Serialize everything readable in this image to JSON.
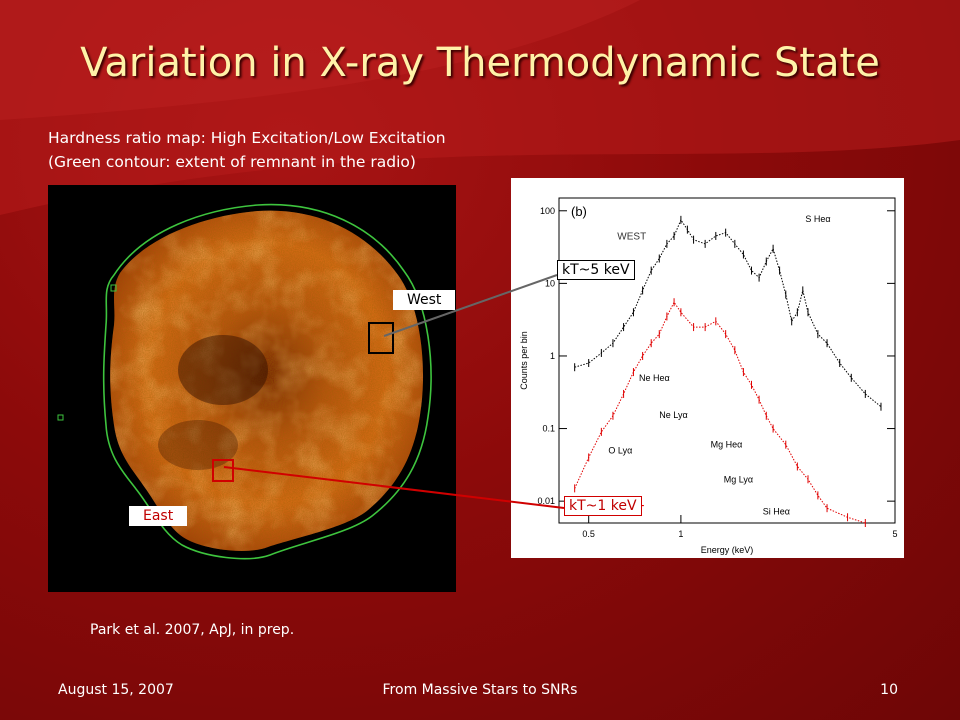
{
  "slide": {
    "title": "Variation in X-ray Thermodynamic State",
    "subtitle_line1": "Hardness ratio map: High Excitation/Low Excitation",
    "subtitle_line2": "(Green contour: extent of remnant in the radio)",
    "citation": "Park et al. 2007, ApJ, in prep.",
    "footer": {
      "date": "August 15, 2007",
      "event": "From Massive Stars to SNRs",
      "page": "10"
    },
    "labels": {
      "west": "West",
      "east": "East",
      "kt_west": "kT~5 keV",
      "kt_east": "kT~1 keV"
    },
    "colors": {
      "title": "#fff2a8",
      "background": "#8c0a0a",
      "contour": "#3ec43e",
      "east_line": "#d00000"
    }
  },
  "chart_data": {
    "type": "line",
    "panel_label": "(b)",
    "xlabel": "Energy (keV)",
    "ylabel": "Counts per bin",
    "xscale": "log",
    "yscale": "log",
    "xlim": [
      0.4,
      5
    ],
    "ylim": [
      0.005,
      150
    ],
    "x_ticks": [
      "0.5",
      "1",
      "5"
    ],
    "y_ticks": [
      "0.01",
      "0.1",
      "1",
      "10",
      "100"
    ],
    "series": [
      {
        "name": "WEST",
        "color": "#000000",
        "x": [
          0.45,
          0.5,
          0.55,
          0.6,
          0.65,
          0.7,
          0.75,
          0.8,
          0.85,
          0.9,
          0.95,
          1.0,
          1.05,
          1.1,
          1.2,
          1.3,
          1.4,
          1.5,
          1.6,
          1.7,
          1.8,
          1.9,
          2.0,
          2.1,
          2.2,
          2.3,
          2.4,
          2.5,
          2.6,
          2.8,
          3.0,
          3.3,
          3.6,
          4.0,
          4.5
        ],
        "y": [
          0.7,
          0.8,
          1.1,
          1.5,
          2.5,
          4,
          8,
          15,
          22,
          35,
          45,
          75,
          55,
          40,
          35,
          45,
          50,
          35,
          25,
          15,
          12,
          20,
          30,
          15,
          7,
          3,
          4,
          8,
          4,
          2,
          1.5,
          0.8,
          0.5,
          0.3,
          0.2
        ]
      },
      {
        "name": "EAST",
        "color": "#e00000",
        "x": [
          0.45,
          0.5,
          0.55,
          0.6,
          0.65,
          0.7,
          0.75,
          0.8,
          0.85,
          0.9,
          0.95,
          1.0,
          1.1,
          1.2,
          1.3,
          1.4,
          1.5,
          1.6,
          1.7,
          1.8,
          1.9,
          2.0,
          2.2,
          2.4,
          2.6,
          2.8,
          3.0,
          3.5,
          4.0
        ],
        "y": [
          0.015,
          0.04,
          0.09,
          0.15,
          0.3,
          0.6,
          1.0,
          1.5,
          2.0,
          3.5,
          5.5,
          4.0,
          2.5,
          2.5,
          3.0,
          2.0,
          1.2,
          0.6,
          0.4,
          0.25,
          0.15,
          0.1,
          0.06,
          0.03,
          0.02,
          0.012,
          0.008,
          0.006,
          0.005
        ]
      }
    ],
    "annotations": [
      "S Heα",
      "Ne Heα",
      "Ne Lyα",
      "Mg Heα",
      "Mg Lyα",
      "Si Heα",
      "O Lyα"
    ],
    "series_labels": [
      "WEST",
      "EAST"
    ]
  }
}
